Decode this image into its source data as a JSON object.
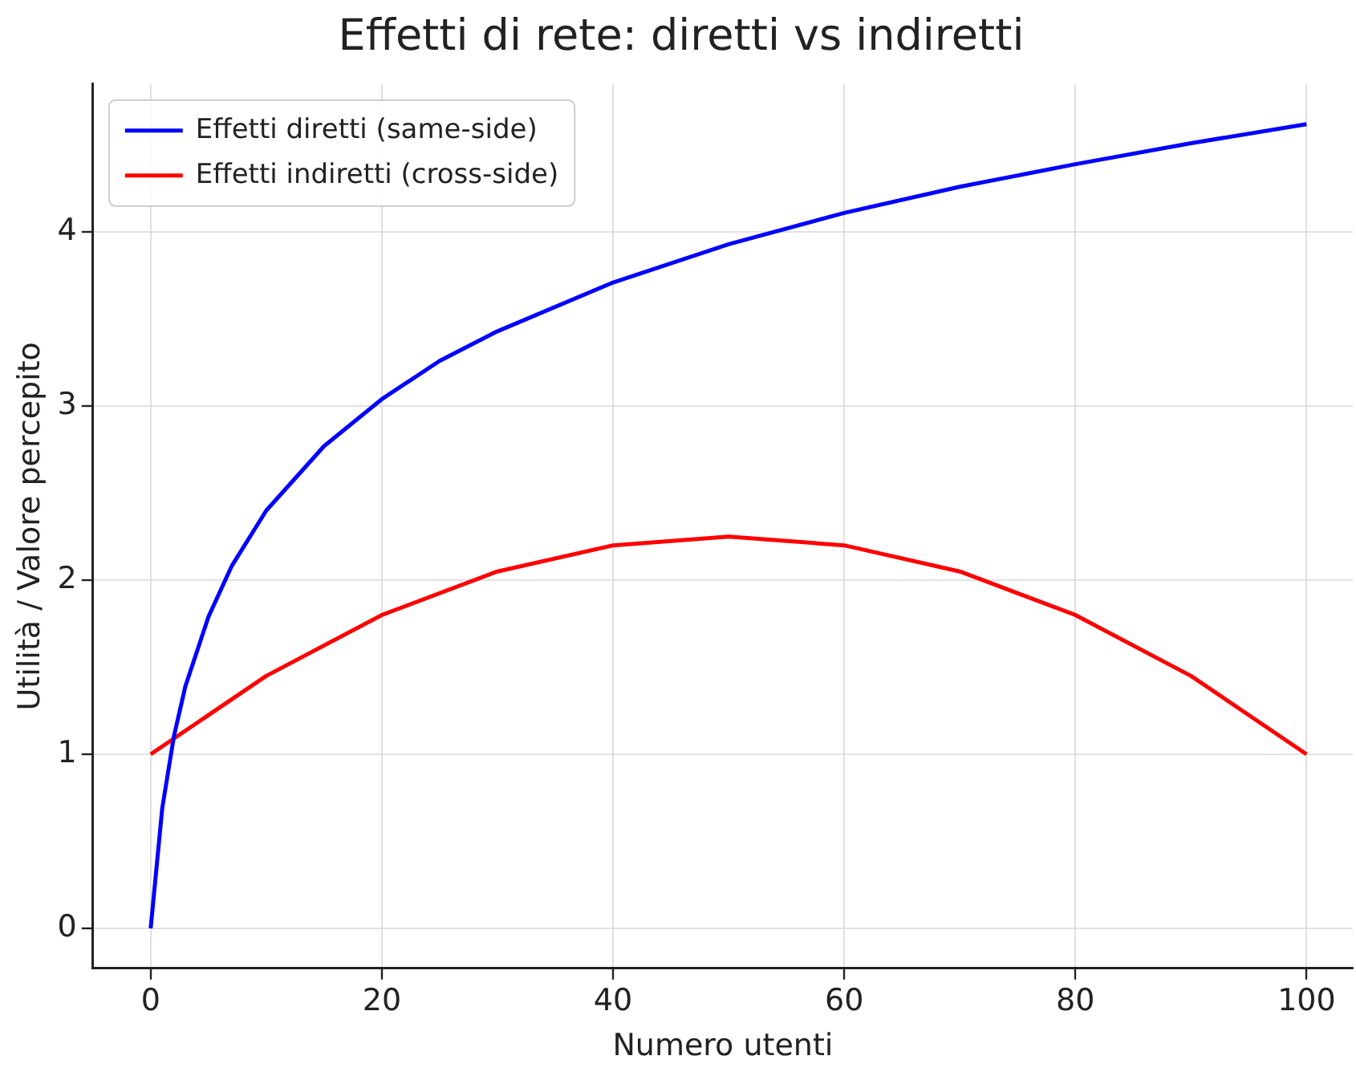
{
  "chart_data": {
    "type": "line",
    "title": "Effetti di rete: diretti vs indiretti",
    "xlabel": "Numero utenti",
    "ylabel": "Utilità / Valore percepito",
    "xlim": [
      -5,
      104
    ],
    "xticks": [
      0,
      20,
      40,
      60,
      80,
      100
    ],
    "ylim": [
      -0.23,
      4.85
    ],
    "yticks": [
      0,
      1,
      2,
      3,
      4
    ],
    "grid": true,
    "legend": "top left",
    "marker": "none",
    "line_style": "solid",
    "series": [
      {
        "name": "Effetti diretti (same-side)",
        "color": "#0000ff",
        "x": [
          0,
          1,
          2,
          3,
          5,
          7,
          10,
          15,
          20,
          25,
          30,
          40,
          50,
          60,
          70,
          80,
          90,
          100
        ],
        "values": [
          0,
          0.69,
          1.1,
          1.39,
          1.79,
          2.08,
          2.4,
          2.77,
          3.04,
          3.26,
          3.43,
          3.71,
          3.93,
          4.11,
          4.26,
          4.39,
          4.51,
          4.62
        ]
      },
      {
        "name": "Effetti indiretti (cross-side)",
        "color": "#ff0000",
        "x": [
          0,
          10,
          20,
          30,
          40,
          50,
          60,
          70,
          80,
          90,
          100
        ],
        "values": [
          1,
          1.45,
          1.8,
          2.05,
          2.2,
          2.25,
          2.2,
          2.05,
          1.8,
          1.45,
          1
        ]
      }
    ]
  }
}
